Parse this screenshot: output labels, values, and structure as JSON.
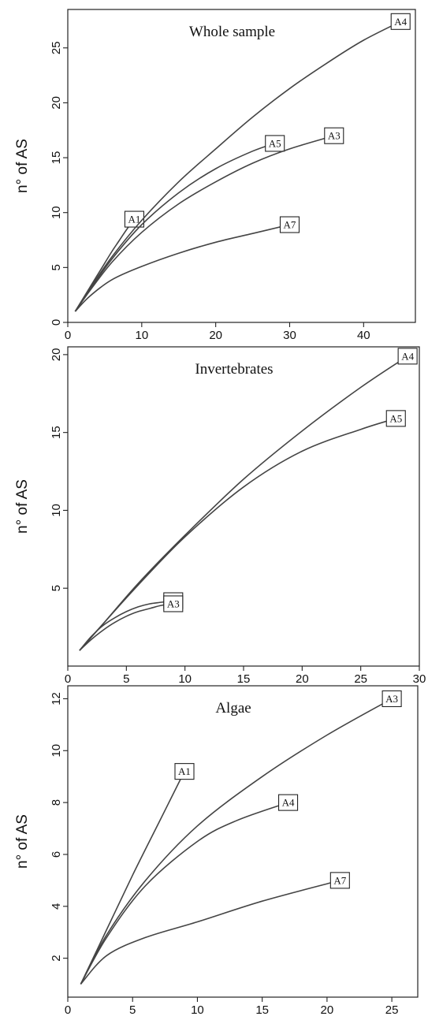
{
  "chart_data": [
    {
      "type": "line",
      "title": "Whole sample",
      "ylabel": "n° of AS",
      "xlabel": "",
      "xlim": [
        0,
        47
      ],
      "ylim": [
        0,
        28.5
      ],
      "xticks": [
        0,
        10,
        20,
        30,
        40
      ],
      "yticks": [
        0,
        5,
        10,
        15,
        20,
        25
      ],
      "series": [
        {
          "name": "A1",
          "x": [
            1,
            2,
            3,
            4,
            5,
            6,
            7,
            8,
            9
          ],
          "y": [
            1,
            2.1,
            3.2,
            4.3,
            5.4,
            6.5,
            7.5,
            8.5,
            9.4
          ]
        },
        {
          "name": "A5",
          "x": [
            1,
            3,
            6,
            10,
            15,
            20,
            25,
            28
          ],
          "y": [
            1,
            3,
            5.8,
            8.9,
            11.8,
            14,
            15.6,
            16.3
          ]
        },
        {
          "name": "A3",
          "x": [
            1,
            3,
            6,
            10,
            15,
            20,
            25,
            30,
            36
          ],
          "y": [
            1,
            2.9,
            5.5,
            8.2,
            10.8,
            12.8,
            14.5,
            15.8,
            17
          ]
        },
        {
          "name": "A4",
          "x": [
            1,
            3,
            6,
            10,
            15,
            20,
            25,
            30,
            35,
            40,
            45
          ],
          "y": [
            1,
            3.1,
            6,
            9.3,
            12.8,
            15.8,
            18.7,
            21.3,
            23.6,
            25.7,
            27.4
          ]
        },
        {
          "name": "A7",
          "x": [
            1,
            3,
            6,
            10,
            15,
            20,
            25,
            30
          ],
          "y": [
            1,
            2.4,
            3.9,
            5.1,
            6.3,
            7.3,
            8.1,
            8.9
          ]
        }
      ]
    },
    {
      "type": "line",
      "title": "Invertebrates",
      "ylabel": "n° of AS",
      "xlabel": "",
      "xlim": [
        0,
        30
      ],
      "ylim": [
        0,
        20.5
      ],
      "xticks": [
        0,
        5,
        10,
        15,
        20,
        25,
        30
      ],
      "yticks": [
        5,
        10,
        15,
        20
      ],
      "series": [
        {
          "name": "A4",
          "x": [
            1,
            3,
            6,
            10,
            15,
            20,
            25,
            29
          ],
          "y": [
            1,
            2.7,
            5.3,
            8.4,
            12,
            15.1,
            17.9,
            19.9
          ]
        },
        {
          "name": "A5",
          "x": [
            1,
            3,
            6,
            10,
            15,
            20,
            25,
            28
          ],
          "y": [
            1,
            2.7,
            5.2,
            8.3,
            11.5,
            13.8,
            15.2,
            15.9
          ]
        },
        {
          "name": "A7",
          "x": [
            1,
            2,
            3,
            4,
            5,
            6,
            7,
            8,
            9
          ],
          "y": [
            1,
            1.9,
            2.6,
            3.1,
            3.5,
            3.8,
            4,
            4.1,
            4.2
          ]
        },
        {
          "name": "A3",
          "x": [
            1,
            2,
            3,
            4,
            5,
            6,
            7,
            8,
            9
          ],
          "y": [
            1,
            1.7,
            2.3,
            2.8,
            3.2,
            3.5,
            3.7,
            3.9,
            4
          ]
        }
      ]
    },
    {
      "type": "line",
      "title": "Algae",
      "ylabel": "n° of AS",
      "xlabel": "",
      "xlim": [
        0,
        27
      ],
      "ylim": [
        0.5,
        12.5
      ],
      "xticks": [
        0,
        5,
        10,
        15,
        20,
        25
      ],
      "yticks": [
        2,
        4,
        6,
        8,
        10,
        12
      ],
      "series": [
        {
          "name": "A1",
          "x": [
            1,
            3,
            5,
            7,
            9
          ],
          "y": [
            1,
            3.1,
            5.2,
            7.2,
            9.2
          ]
        },
        {
          "name": "A3",
          "x": [
            1,
            3,
            6,
            10,
            15,
            20,
            25
          ],
          "y": [
            1,
            2.9,
            5,
            7.1,
            9,
            10.6,
            12
          ]
        },
        {
          "name": "A4",
          "x": [
            1,
            3,
            6,
            10,
            13,
            17
          ],
          "y": [
            1,
            2.8,
            4.8,
            6.5,
            7.3,
            8
          ]
        },
        {
          "name": "A7",
          "x": [
            1,
            3,
            6,
            10,
            15,
            21
          ],
          "y": [
            1,
            2.1,
            2.8,
            3.4,
            4.2,
            5
          ]
        }
      ]
    }
  ]
}
